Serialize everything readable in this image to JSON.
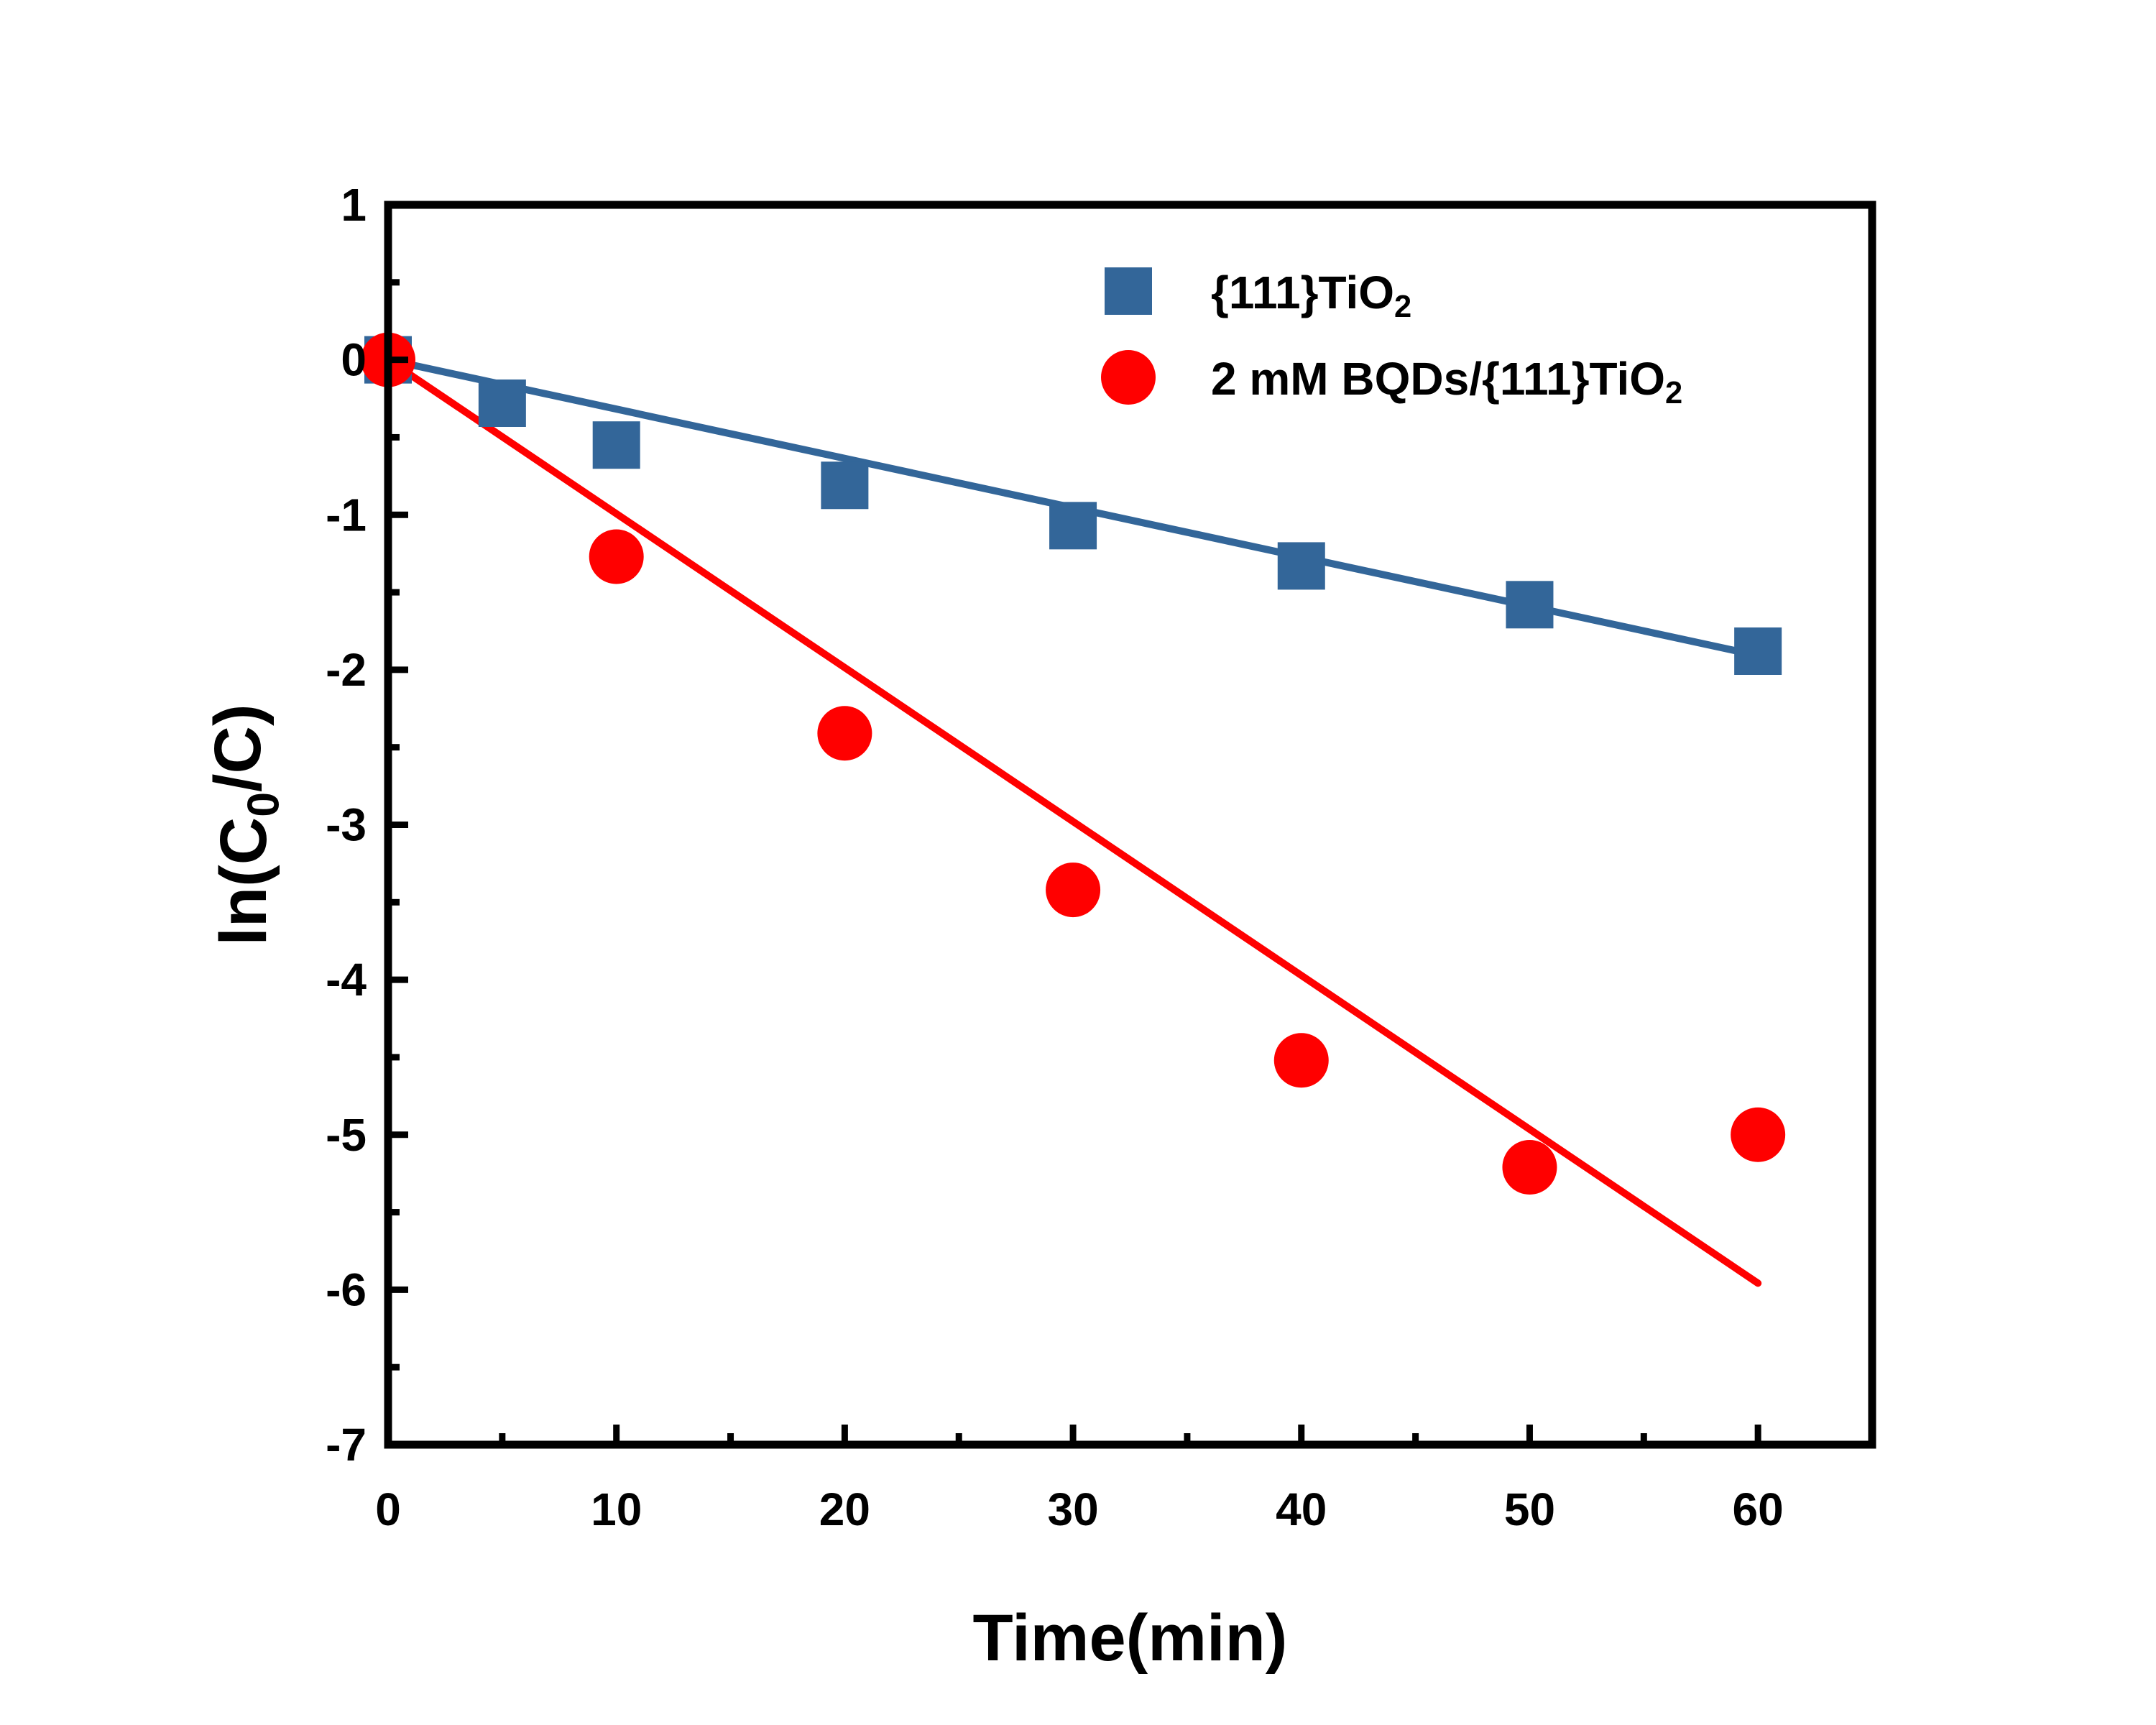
{
  "chart_data": {
    "type": "scatter",
    "xlabel": "Time(min)",
    "ylabel": {
      "base": "ln(C",
      "sub": "0",
      "tail": "/C)"
    },
    "xlim": [
      0,
      65
    ],
    "ylim": [
      -7,
      1
    ],
    "x_ticks": [
      0,
      10,
      20,
      30,
      40,
      50,
      60
    ],
    "y_ticks": [
      1,
      0,
      -1,
      -2,
      -3,
      -4,
      -5,
      -6,
      -7
    ],
    "grid": false,
    "legend_position": "top-right",
    "series": [
      {
        "name": {
          "base": "{111}TiO",
          "sub": "2"
        },
        "marker": "square",
        "color": "#336699",
        "x": [
          0,
          5,
          10,
          20,
          30,
          40,
          50,
          60
        ],
        "y": [
          0,
          -0.28,
          -0.55,
          -0.81,
          -1.07,
          -1.33,
          -1.58,
          -1.88
        ],
        "fit": {
          "slope": -0.0318,
          "intercept": 0,
          "x_range": [
            0,
            60
          ]
        }
      },
      {
        "name": {
          "base": "2 mM BQDs/{111}TiO",
          "sub": "2"
        },
        "marker": "circle",
        "color": "#ff0000",
        "x": [
          0,
          10,
          20,
          30,
          40,
          50,
          60
        ],
        "y": [
          0,
          -1.27,
          -2.41,
          -3.42,
          -4.52,
          -5.21,
          -5.0
        ],
        "fit": {
          "slope": -0.0993,
          "intercept": 0,
          "x_range": [
            0,
            60
          ]
        }
      }
    ]
  }
}
